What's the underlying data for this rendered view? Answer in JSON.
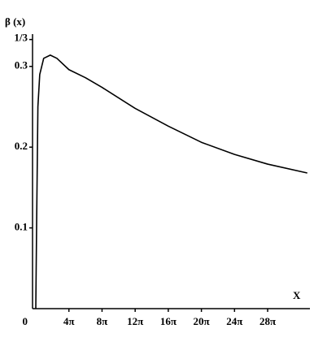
{
  "chart_data": {
    "type": "line",
    "y_label": "β (x)",
    "x_label": "X",
    "x": [
      0,
      0.3,
      0.8,
      1.5,
      3,
      5.5,
      8,
      12.57,
      18.85,
      25.13,
      37.7,
      50.27,
      62.83,
      75.4,
      87.96,
      103
    ],
    "series": [
      {
        "color": "#000000",
        "values": [
          0,
          0.1,
          0.25,
          0.29,
          0.31,
          0.314,
          0.31,
          0.296,
          0.286,
          0.274,
          0.248,
          0.226,
          0.206,
          0.191,
          0.179,
          0.168
        ]
      }
    ],
    "xlim": [
      0,
      104
    ],
    "ylim": [
      0,
      0.34
    ],
    "xticks": [
      0,
      {
        "value": 12.566,
        "label": "4π"
      },
      {
        "value": 25.133,
        "label": "8π"
      },
      {
        "value": 37.699,
        "label": "12π"
      },
      {
        "value": 50.265,
        "label": "16π"
      },
      {
        "value": 62.832,
        "label": "20π"
      },
      {
        "value": 75.398,
        "label": "24π"
      },
      {
        "value": 87.965,
        "label": "28π"
      }
    ],
    "yticks": [
      0.1,
      0.2,
      0.3,
      {
        "value": 0.3333,
        "label": "1/3"
      }
    ],
    "grid": false
  }
}
